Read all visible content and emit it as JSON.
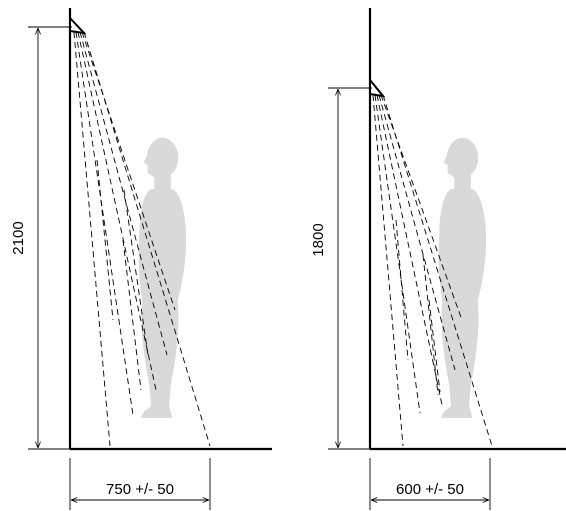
{
  "diagrams": [
    {
      "height_label": "2100",
      "distance_label": "750 +/- 50"
    },
    {
      "height_label": "1800",
      "distance_label": "600 +/- 50"
    }
  ],
  "colors": {
    "lines": "#000000",
    "person_silhouette": "#d9d9d9"
  },
  "icons": [
    "shower-head-icon",
    "person-silhouette-icon"
  ]
}
